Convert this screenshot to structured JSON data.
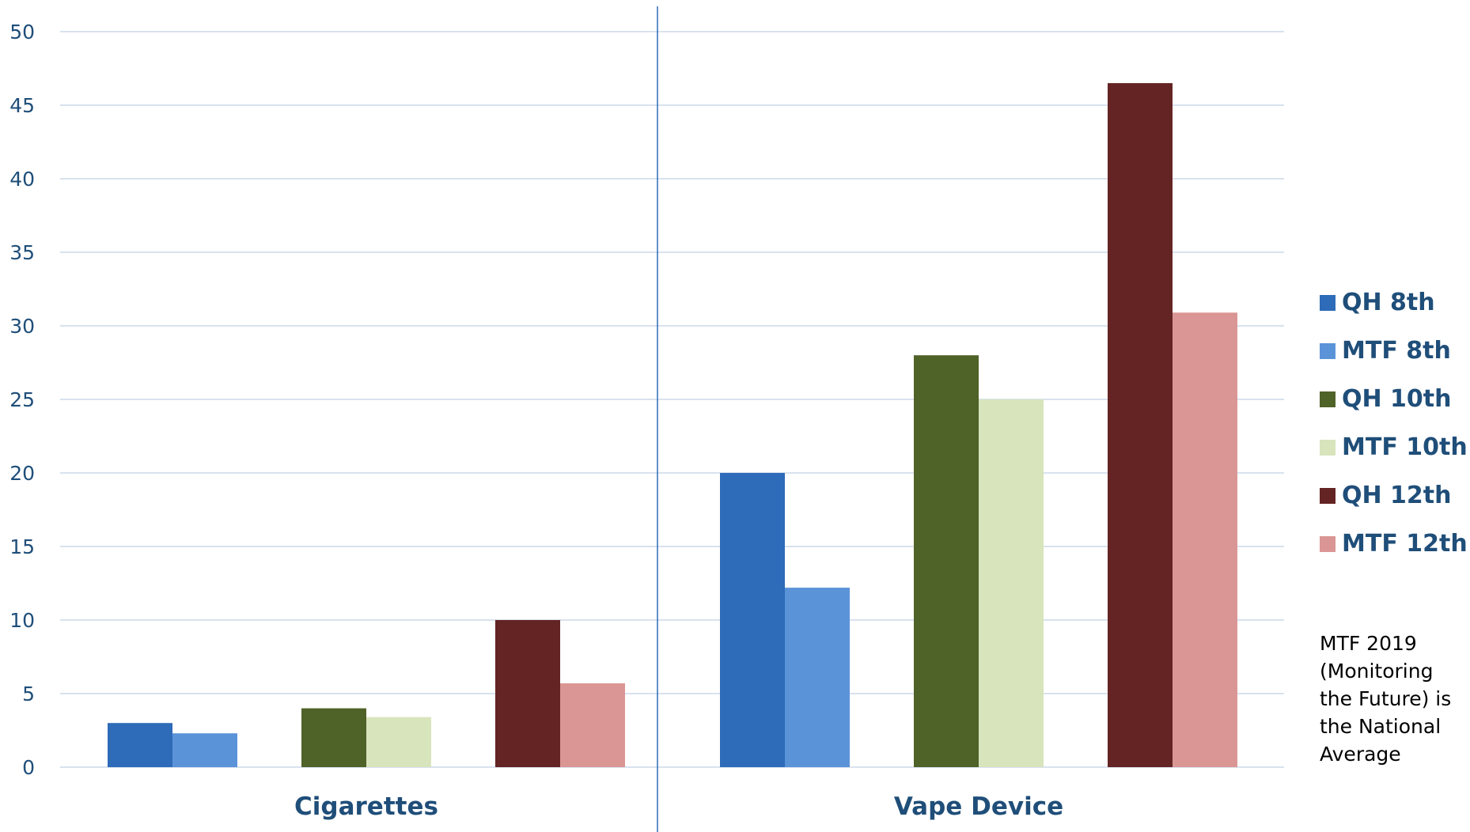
{
  "chart_data": {
    "type": "bar",
    "categories": [
      "Cigarettes",
      "Vape Device"
    ],
    "series": [
      {
        "name": "QH 8th",
        "color": "#2e6bb8",
        "values": [
          3.0,
          20.0
        ]
      },
      {
        "name": "MTF 8th",
        "color": "#5b93d9",
        "values": [
          2.3,
          12.2
        ]
      },
      {
        "name": "QH 10th",
        "color": "#4f6228",
        "values": [
          4.0,
          28.0
        ]
      },
      {
        "name": "MTF 10th",
        "color": "#d8e4bc",
        "values": [
          3.4,
          25.0
        ]
      },
      {
        "name": "QH 12th",
        "color": "#632423",
        "values": [
          10.0,
          46.5
        ]
      },
      {
        "name": "MTF 12th",
        "color": "#da9694",
        "values": [
          5.7,
          30.9
        ]
      }
    ],
    "yticks": [
      0,
      5,
      10,
      15,
      20,
      25,
      30,
      35,
      40,
      45,
      50
    ],
    "ylim": [
      0,
      50
    ],
    "grid": true,
    "legend_position": "right",
    "note": "MTF 2019\n(Monitoring\nthe Future) is\nthe National\nAverage",
    "colors": {
      "gridline": "#d9e2ee",
      "axis_label": "#1f4e79",
      "tick_label": "#1f4e79",
      "divider": "#2e6bb8"
    }
  }
}
